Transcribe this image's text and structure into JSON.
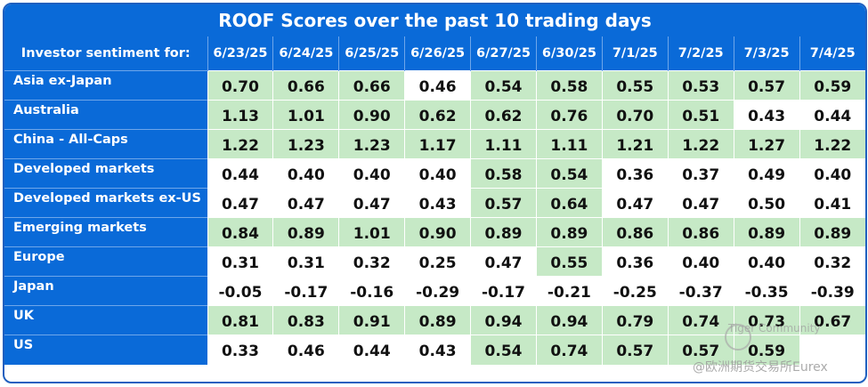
{
  "chart_data": {
    "type": "table",
    "title": "ROOF Scores over the past 10 trading days",
    "row_header_label": "Investor sentiment for:",
    "columns": [
      "6/23/25",
      "6/24/25",
      "6/25/25",
      "6/26/25",
      "6/27/25",
      "6/30/25",
      "7/1/25",
      "7/2/25",
      "7/3/25",
      "7/4/25"
    ],
    "rows": [
      {
        "name": "Asia ex-Japan",
        "values": [
          "0.70",
          "0.66",
          "0.66",
          "0.46",
          "0.54",
          "0.58",
          "0.55",
          "0.53",
          "0.57",
          "0.59"
        ],
        "highlight": [
          1,
          1,
          1,
          0,
          1,
          1,
          1,
          1,
          1,
          1
        ]
      },
      {
        "name": "Australia",
        "values": [
          "1.13",
          "1.01",
          "0.90",
          "0.62",
          "0.62",
          "0.76",
          "0.70",
          "0.51",
          "0.43",
          "0.44"
        ],
        "highlight": [
          1,
          1,
          1,
          1,
          1,
          1,
          1,
          1,
          0,
          0
        ]
      },
      {
        "name": "China - All-Caps",
        "values": [
          "1.22",
          "1.23",
          "1.23",
          "1.17",
          "1.11",
          "1.11",
          "1.21",
          "1.22",
          "1.27",
          "1.22"
        ],
        "highlight": [
          1,
          1,
          1,
          1,
          1,
          1,
          1,
          1,
          1,
          1
        ]
      },
      {
        "name": "Developed markets",
        "values": [
          "0.44",
          "0.40",
          "0.40",
          "0.40",
          "0.58",
          "0.54",
          "0.36",
          "0.37",
          "0.49",
          "0.40"
        ],
        "highlight": [
          0,
          0,
          0,
          0,
          1,
          1,
          0,
          0,
          0,
          0
        ]
      },
      {
        "name": "Developed markets ex-US",
        "values": [
          "0.47",
          "0.47",
          "0.47",
          "0.43",
          "0.57",
          "0.64",
          "0.47",
          "0.47",
          "0.50",
          "0.41"
        ],
        "highlight": [
          0,
          0,
          0,
          0,
          1,
          1,
          0,
          0,
          0,
          0
        ]
      },
      {
        "name": "Emerging markets",
        "values": [
          "0.84",
          "0.89",
          "1.01",
          "0.90",
          "0.89",
          "0.89",
          "0.86",
          "0.86",
          "0.89",
          "0.89"
        ],
        "highlight": [
          1,
          1,
          1,
          1,
          1,
          1,
          1,
          1,
          1,
          1
        ]
      },
      {
        "name": "Europe",
        "values": [
          "0.31",
          "0.31",
          "0.32",
          "0.25",
          "0.47",
          "0.55",
          "0.36",
          "0.40",
          "0.40",
          "0.32"
        ],
        "highlight": [
          0,
          0,
          0,
          0,
          0,
          1,
          0,
          0,
          0,
          0
        ]
      },
      {
        "name": "Japan",
        "values": [
          "-0.05",
          "-0.17",
          "-0.16",
          "-0.29",
          "-0.17",
          "-0.21",
          "-0.25",
          "-0.37",
          "-0.35",
          "-0.39"
        ],
        "highlight": [
          0,
          0,
          0,
          0,
          0,
          0,
          0,
          0,
          0,
          0
        ]
      },
      {
        "name": "UK",
        "values": [
          "0.81",
          "0.83",
          "0.91",
          "0.89",
          "0.94",
          "0.94",
          "0.79",
          "0.74",
          "0.73",
          "0.67"
        ],
        "highlight": [
          1,
          1,
          1,
          1,
          1,
          1,
          1,
          1,
          1,
          1
        ]
      },
      {
        "name": "US",
        "values": [
          "0.33",
          "0.46",
          "0.44",
          "0.43",
          "0.54",
          "0.74",
          "0.57",
          "0.57",
          "0.59",
          ""
        ],
        "highlight": [
          0,
          0,
          0,
          0,
          1,
          1,
          1,
          1,
          1,
          0
        ]
      }
    ]
  },
  "colors": {
    "header_bg": "#0a6ad8",
    "highlight_bg": "#c6e9c6",
    "plain_bg": "#ffffff"
  },
  "watermark": {
    "line1": "Tiger Community",
    "line2": "@欧洲期货交易所Eurex"
  }
}
